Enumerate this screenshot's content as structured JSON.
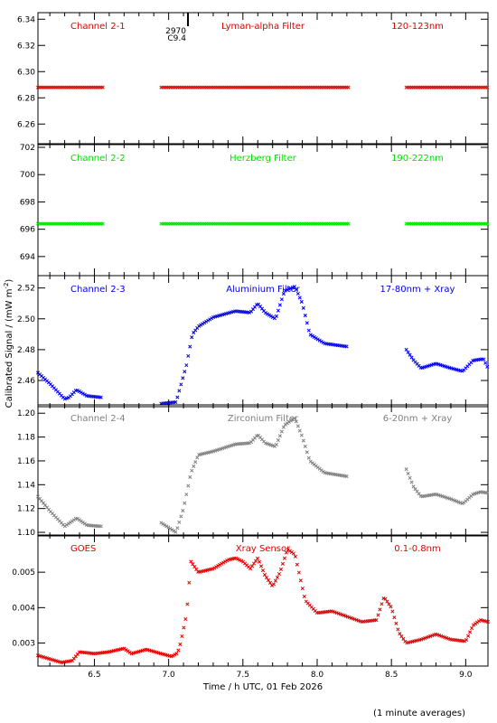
{
  "figure": {
    "ylabel": "Calibrated Signal / (mW m",
    "ylabel_sup": "-2",
    "ylabel_close": ")",
    "xlabel": "Time / h UTC, 01 Feb 2026",
    "footnote": "(1 minute averages)",
    "flare_marker": {
      "x": 7.13,
      "number": "2970",
      "class": "C9.4"
    }
  },
  "chart_data": [
    {
      "type": "scatter",
      "labels": [
        "Channel 2-1",
        "Lyman-alpha Filter",
        "120-123nm"
      ],
      "color": "#e00000",
      "xlim": [
        6.12,
        9.15
      ],
      "ylim": [
        6.245,
        6.345
      ],
      "yticks": [
        6.26,
        6.28,
        6.3,
        6.32,
        6.34
      ],
      "ytick_labels": [
        "6.26",
        "6.28",
        "6.30",
        "6.32",
        "6.34"
      ],
      "segments": [
        {
          "x": [
            6.12,
            6.56
          ],
          "y": [
            6.288,
            6.288
          ]
        },
        {
          "x": [
            6.95,
            8.22
          ],
          "y": [
            6.288,
            6.288
          ]
        },
        {
          "x": [
            8.6,
            9.15
          ],
          "y": [
            6.288,
            6.288
          ]
        }
      ]
    },
    {
      "type": "scatter",
      "labels": [
        "Channel 2-2",
        "Herzberg Filter",
        "190-222nm"
      ],
      "color": "#00e000",
      "xlim": [
        6.12,
        9.15
      ],
      "ylim": [
        692.6,
        702.2
      ],
      "yticks": [
        694,
        696,
        698,
        700,
        702
      ],
      "ytick_labels": [
        "694",
        "696",
        "698",
        "700",
        "702"
      ],
      "segments": [
        {
          "x": [
            6.12,
            6.56
          ],
          "y": [
            696.4,
            696.4
          ]
        },
        {
          "x": [
            6.95,
            8.22
          ],
          "y": [
            696.4,
            696.4
          ]
        },
        {
          "x": [
            8.6,
            9.15
          ],
          "y": [
            696.4,
            696.4
          ]
        }
      ]
    },
    {
      "type": "scatter",
      "labels": [
        "Channel 2-3",
        "Aluminium Filter",
        "17-80nm + Xray"
      ],
      "color": "#0000e0",
      "xlim": [
        6.12,
        9.15
      ],
      "ylim": [
        2.443,
        2.528
      ],
      "yticks": [
        2.46,
        2.48,
        2.5,
        2.52
      ],
      "ytick_labels": [
        "2.46",
        "2.48",
        "2.50",
        "2.52"
      ],
      "segments": [
        {
          "x": [
            6.12,
            6.2,
            6.3,
            6.33,
            6.38,
            6.45,
            6.55
          ],
          "y": [
            2.465,
            2.458,
            2.448,
            2.449,
            2.454,
            2.45,
            2.449
          ]
        },
        {
          "x": [
            6.95,
            7.05,
            7.12,
            7.16,
            7.2,
            7.3,
            7.45,
            7.55,
            7.6,
            7.65,
            7.72,
            7.78,
            7.85,
            7.9,
            7.95,
            8.05,
            8.2
          ],
          "y": [
            2.445,
            2.446,
            2.47,
            2.49,
            2.495,
            2.501,
            2.505,
            2.504,
            2.51,
            2.504,
            2.5,
            2.518,
            2.521,
            2.51,
            2.49,
            2.484,
            2.482
          ]
        },
        {
          "x": [
            8.6,
            8.65,
            8.7,
            8.8,
            8.9,
            8.98,
            9.05,
            9.12,
            9.15
          ],
          "y": [
            2.48,
            2.473,
            2.468,
            2.471,
            2.468,
            2.466,
            2.473,
            2.474,
            2.468
          ]
        }
      ]
    },
    {
      "type": "scatter",
      "labels": [
        "Channel 2-4",
        "Zirconium Filter",
        "6-20nm + Xray"
      ],
      "color": "#808080",
      "xlim": [
        6.12,
        9.15
      ],
      "ylim": [
        1.097,
        1.207
      ],
      "yticks": [
        1.1,
        1.12,
        1.14,
        1.16,
        1.18,
        1.2
      ],
      "ytick_labels": [
        "1.10",
        "1.12",
        "1.14",
        "1.16",
        "1.18",
        "1.20"
      ],
      "segments": [
        {
          "x": [
            6.12,
            6.2,
            6.3,
            6.38,
            6.45,
            6.55
          ],
          "y": [
            1.13,
            1.118,
            1.105,
            1.112,
            1.106,
            1.105
          ]
        },
        {
          "x": [
            6.95,
            7.05,
            7.1,
            7.15,
            7.2,
            7.3,
            7.45,
            7.55,
            7.6,
            7.65,
            7.72,
            7.78,
            7.85,
            7.9,
            7.95,
            8.05,
            8.2
          ],
          "y": [
            1.108,
            1.1,
            1.12,
            1.15,
            1.165,
            1.168,
            1.174,
            1.175,
            1.182,
            1.175,
            1.172,
            1.19,
            1.196,
            1.18,
            1.16,
            1.15,
            1.147
          ]
        },
        {
          "x": [
            8.6,
            8.65,
            8.7,
            8.8,
            8.9,
            8.98,
            9.05,
            9.1,
            9.15
          ],
          "y": [
            1.153,
            1.138,
            1.13,
            1.132,
            1.128,
            1.124,
            1.132,
            1.134,
            1.133
          ]
        }
      ]
    },
    {
      "type": "scatter",
      "labels": [
        "GOES",
        "Xray Sensor",
        "0.1-0.8nm"
      ],
      "color": "#e00000",
      "xlim": [
        6.12,
        9.15
      ],
      "ylim": [
        0.00235,
        0.00605
      ],
      "yticks": [
        0.003,
        0.004,
        0.005
      ],
      "ytick_labels": [
        "0.003",
        "0.004",
        "0.005"
      ],
      "segments": [
        {
          "x": [
            6.12,
            6.2,
            6.28,
            6.35,
            6.4,
            6.5,
            6.6,
            6.7,
            6.75,
            6.85,
            6.95,
            7.02,
            7.06,
            7.08,
            7.12,
            7.15,
            7.2,
            7.3,
            7.4,
            7.45,
            7.5,
            7.55,
            7.6,
            7.65,
            7.7,
            7.75,
            7.8,
            7.85,
            7.92,
            8.0,
            8.1,
            8.2,
            8.3,
            8.4,
            8.45,
            8.5,
            8.55,
            8.6,
            8.7,
            8.8,
            8.9,
            9.0,
            9.05,
            9.1,
            9.15
          ],
          "y": [
            0.00265,
            0.00255,
            0.00245,
            0.0025,
            0.00275,
            0.0027,
            0.00275,
            0.00285,
            0.0027,
            0.00282,
            0.0027,
            0.00262,
            0.00272,
            0.003,
            0.0038,
            0.0053,
            0.005,
            0.0051,
            0.00535,
            0.0054,
            0.0053,
            0.0051,
            0.0054,
            0.0049,
            0.0046,
            0.005,
            0.00565,
            0.0055,
            0.0042,
            0.00385,
            0.0039,
            0.00375,
            0.0036,
            0.00365,
            0.0043,
            0.004,
            0.0033,
            0.003,
            0.0031,
            0.00325,
            0.0031,
            0.00305,
            0.0035,
            0.00365,
            0.0036
          ]
        }
      ]
    }
  ],
  "xticks": [
    6.5,
    7.0,
    7.5,
    8.0,
    8.5,
    9.0
  ],
  "xtick_labels": [
    "6.5",
    "7.0",
    "7.5",
    "8.0",
    "8.5",
    "9.0"
  ]
}
